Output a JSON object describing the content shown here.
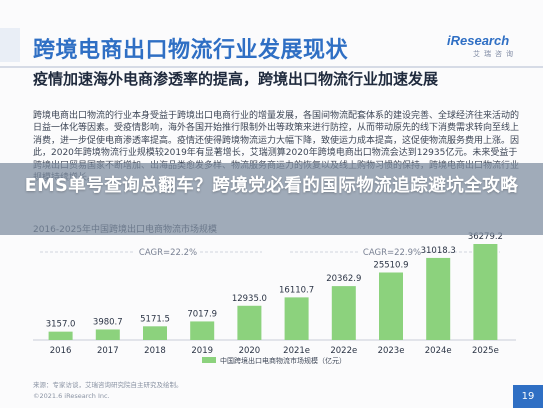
{
  "slide": {
    "title": "跨境电商出口物流行业发展现状",
    "subhead": "疫情加速海外电商渗透率的提高，跨境出口物流行业加速发展",
    "body": "跨境电商出口物流的行业本身受益于跨境出口电商行业的增量发展，各国间物流配套体系的建设完善、全球经济往来活动的日益一体化等因素。受疫情影响，海外各国开始推行限制外出等政策来进行防控，从而带动原先的线下消费需求转向至线上消费，进一步促使电商渗透率提高。疫情还使得跨境物流运力大幅下降，致使运力成本提高，这促使物流服务费用上涨。因此，2020年跨境物流行业规模较2019年有显著增长，艾瑞测算2020年跨境电商出口物流会达到12935亿元。未来受益于跨境出口贸易国家不断增加、出海品类愈发多样、物流服务商运力的恢复以及线上购物习惯的保持，跨境电商出口物流行业规模持续增长。",
    "banner": "EMS单号查询总翻车？跨境党必看的国际物流追踪避坑全攻略",
    "source_note": "来源：专家访谈，艾瑞咨询研究院自主研究及绘制。",
    "copyright": "©2021.6 iResearch Inc.",
    "footer_logo": "iResearch",
    "page_number": "19"
  },
  "logo": {
    "main": "iResearch",
    "sub": "艾瑞咨询"
  },
  "chart_data": {
    "type": "bar",
    "title": "2016-2025年中国跨境出口电商物流市场规模",
    "categories": [
      "2016",
      "2017",
      "2018",
      "2019",
      "2020",
      "2021e",
      "2022e",
      "2023e",
      "2024e",
      "2025e"
    ],
    "series": [
      {
        "name": "中国跨境出口电商物流市场规模（亿元）",
        "values": [
          3157.0,
          3980.7,
          5171.5,
          7017.9,
          12935.0,
          16110.7,
          20362.9,
          25510.9,
          31018.3,
          36279.2
        ]
      }
    ],
    "value_labels": [
      "3157.0",
      "3980.7",
      "5171.5",
      "7017.9",
      "12935.0",
      "16110.7",
      "20362.9",
      "25510.9",
      "31018.3",
      "36279.2"
    ],
    "annotations": [
      "CAGR=22.2%",
      "CAGR=22.9%"
    ],
    "ylim": [
      0,
      36279.2
    ],
    "grid": false,
    "legend_position": "bottom",
    "colors": {
      "bar": "#8cd27d",
      "axis": "#c9ced8",
      "label": "#2b3445"
    }
  }
}
